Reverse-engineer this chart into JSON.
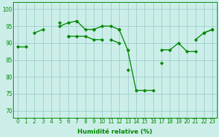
{
  "x": [
    0,
    1,
    2,
    3,
    4,
    5,
    6,
    7,
    8,
    9,
    10,
    11,
    12,
    13,
    14,
    15,
    16,
    17,
    18,
    19,
    20,
    21,
    22,
    23
  ],
  "lines": [
    [
      89,
      89,
      null,
      null,
      null,
      95,
      96,
      96.5,
      null,
      null,
      null,
      null,
      94,
      null,
      null,
      null,
      null,
      null,
      null,
      null,
      null,
      null,
      93,
      94
    ],
    [
      null,
      null,
      93,
      94,
      null,
      96,
      null,
      96.5,
      94,
      94,
      95,
      95,
      94,
      88,
      76,
      76,
      76,
      null,
      null,
      null,
      null,
      91,
      93,
      94
    ],
    [
      null,
      null,
      null,
      null,
      null,
      null,
      92,
      92,
      92,
      91,
      91,
      null,
      null,
      null,
      null,
      null,
      null,
      null,
      null,
      null,
      null,
      null,
      null,
      null
    ],
    [
      null,
      null,
      null,
      null,
      null,
      null,
      92,
      null,
      null,
      94,
      null,
      91,
      90,
      null,
      null,
      null,
      null,
      88,
      88,
      90,
      87.5,
      87.5,
      null,
      null
    ],
    [
      null,
      null,
      null,
      null,
      null,
      null,
      null,
      null,
      null,
      null,
      null,
      null,
      null,
      82,
      null,
      null,
      null,
      84,
      null,
      null,
      null,
      null,
      null,
      null
    ]
  ],
  "background_color": "#cceee8",
  "grid_color": "#99cccc",
  "line_color": "#008800",
  "ylabel_ticks": [
    70,
    75,
    80,
    85,
    90,
    95,
    100
  ],
  "ylim": [
    68,
    102
  ],
  "xlim": [
    -0.5,
    23.5
  ],
  "xlabel": "Humidité relative (%)",
  "marker": "D",
  "markersize": 2.5,
  "linewidth": 1.0,
  "tick_fontsize": 5.5,
  "label_fontsize": 6.5
}
